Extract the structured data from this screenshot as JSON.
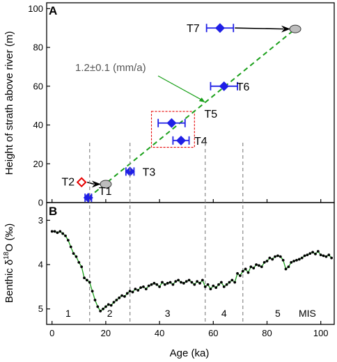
{
  "chart_data": [
    {
      "panel": "A",
      "type": "scatter",
      "ylabel": "Height of strath above river (m)",
      "xlim": [
        -2,
        105
      ],
      "ylim": [
        0,
        103
      ],
      "yticks": [
        0,
        20,
        40,
        60,
        80,
        100
      ],
      "xticks": [
        0,
        20,
        40,
        60,
        80,
        100
      ],
      "terraces": [
        {
          "label": "T1",
          "age": 13.5,
          "age_err": 1.2,
          "height": 2.5
        },
        {
          "label": "T2",
          "age": 11.0,
          "age_err": 0,
          "height": 10.5
        },
        {
          "label": "T3",
          "age": 29.0,
          "age_err": 1.5,
          "height": 16.0
        },
        {
          "label": "T4",
          "age": 48.0,
          "age_err": 3.0,
          "height": 32.0
        },
        {
          "label": "T5",
          "age": 44.5,
          "age_err": 5.0,
          "height": 41.0
        },
        {
          "label": "T6",
          "age": 64.0,
          "age_err": 5.0,
          "height": 60.0
        },
        {
          "label": "T7",
          "age": 62.5,
          "age_err": 5.0,
          "height": 90.0
        }
      ],
      "extrapolated": [
        {
          "from": "T2",
          "age": 20.0,
          "height": 9.5
        },
        {
          "from": "T7",
          "age": 90.5,
          "height": 89.5
        }
      ],
      "trend": {
        "label": "1.2±0.1 (mm/a)",
        "x": [
          13.5,
          90.5
        ],
        "y": [
          2.5,
          89.5
        ]
      },
      "highlight_box": {
        "x": [
          37,
          53
        ],
        "y": [
          28.5,
          47
        ]
      },
      "colors": {
        "terrace": "#1f1fe6",
        "outlier": "#e60000",
        "trend": "#1aa01a",
        "ellipse": "#bdbdbd",
        "box": "#e60000"
      }
    },
    {
      "panel": "B",
      "type": "line",
      "xlabel": "Age (ka)",
      "ylabel_prefix": "Benthic δ",
      "ylabel_sup": "18",
      "ylabel_suffix": "O (‰)",
      "xlim": [
        -2,
        105
      ],
      "ylim": [
        2.6,
        5.35
      ],
      "y_inverted": true,
      "yticks": [
        3,
        4,
        5
      ],
      "xticks": [
        0,
        20,
        40,
        60,
        80,
        100
      ],
      "x": [
        0,
        1,
        2,
        3,
        4,
        5,
        6,
        7,
        8,
        9,
        10,
        11,
        12,
        13,
        14,
        15,
        16,
        17,
        18,
        19,
        20,
        21,
        22,
        23,
        24,
        25,
        26,
        27,
        28,
        29,
        30,
        31,
        32,
        33,
        34,
        35,
        36,
        37,
        38,
        39,
        40,
        41,
        42,
        43,
        44,
        45,
        46,
        47,
        48,
        49,
        50,
        51,
        52,
        53,
        54,
        55,
        56,
        57,
        58,
        59,
        60,
        61,
        62,
        63,
        64,
        65,
        66,
        67,
        68,
        69,
        70,
        71,
        72,
        73,
        74,
        75,
        76,
        77,
        78,
        79,
        80,
        81,
        82,
        83,
        84,
        85,
        86,
        87,
        88,
        89,
        90,
        91,
        92,
        93,
        94,
        95,
        96,
        97,
        98,
        99,
        100,
        101,
        102,
        103,
        104
      ],
      "y": [
        3.25,
        3.25,
        3.28,
        3.25,
        3.3,
        3.35,
        3.45,
        3.6,
        3.75,
        3.82,
        3.95,
        4.05,
        4.3,
        4.35,
        4.4,
        4.6,
        4.8,
        4.95,
        5.05,
        5.0,
        4.95,
        4.9,
        4.92,
        4.85,
        4.8,
        4.75,
        4.7,
        4.72,
        4.65,
        4.6,
        4.62,
        4.55,
        4.58,
        4.52,
        4.5,
        4.55,
        4.48,
        4.45,
        4.42,
        4.45,
        4.5,
        4.4,
        4.45,
        4.42,
        4.4,
        4.45,
        4.38,
        4.35,
        4.4,
        4.42,
        4.38,
        4.35,
        4.4,
        4.45,
        4.38,
        4.42,
        4.35,
        4.5,
        4.45,
        4.55,
        4.48,
        4.52,
        4.45,
        4.4,
        4.5,
        4.45,
        4.4,
        4.35,
        4.4,
        4.2,
        4.25,
        4.15,
        4.1,
        4.18,
        4.05,
        4.08,
        4.0,
        4.02,
        4.05,
        3.95,
        3.92,
        3.85,
        3.88,
        3.82,
        3.8,
        3.82,
        3.9,
        4.1,
        4.05,
        3.95,
        3.92,
        3.9,
        3.88,
        3.85,
        3.8,
        3.78,
        3.75,
        3.72,
        3.76,
        3.7,
        3.78,
        3.8,
        3.82,
        3.78,
        3.85
      ],
      "boundaries": [
        14,
        29,
        57,
        71
      ],
      "stages": [
        {
          "label": "1",
          "x": 6
        },
        {
          "label": "2",
          "x": 21.5
        },
        {
          "label": "3",
          "x": 43
        },
        {
          "label": "4",
          "x": 64
        },
        {
          "label": "5",
          "x": 84
        },
        {
          "label": "MIS",
          "x": 95
        }
      ],
      "colors": {
        "line": "#1aa01a",
        "point": "#000000",
        "boundary": "#888888"
      }
    }
  ],
  "panels": {
    "a_letter": "A",
    "b_letter": "B",
    "rate_label": "1.2±0.1 (mm/a)",
    "ylabel_a": "Height of strath above river (m)",
    "xlabel_b": "Age (ka)",
    "ylabel_b_prefix": "Benthic δ",
    "ylabel_b_sup": "18",
    "ylabel_b_suffix": "O (‰)"
  }
}
